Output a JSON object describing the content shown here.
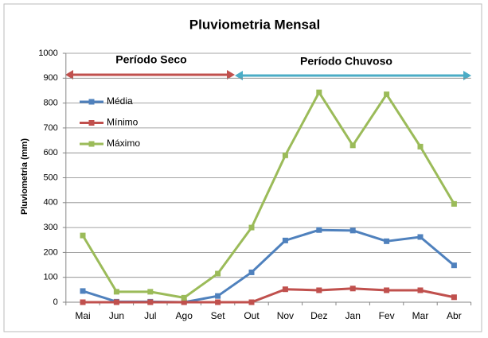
{
  "chart_data": {
    "type": "line",
    "title": "Pluviometria Mensal",
    "y_label": "Pluviometria (mm)",
    "annotations": [
      "Período Seco",
      "Período Chuvoso"
    ],
    "categories": [
      "Mai",
      "Jun",
      "Jul",
      "Ago",
      "Set",
      "Out",
      "Nov",
      "Dez",
      "Jan",
      "Fev",
      "Mar",
      "Abr"
    ],
    "series": [
      {
        "name": "Média",
        "color": "#4f81bd",
        "values": [
          45,
          2,
          2,
          0,
          25,
          120,
          248,
          290,
          288,
          245,
          262,
          148
        ]
      },
      {
        "name": "Mínimo",
        "color": "#c0504d",
        "values": [
          0,
          0,
          0,
          0,
          0,
          0,
          52,
          48,
          55,
          48,
          48,
          20
        ]
      },
      {
        "name": "Máximo",
        "color": "#9bbb59",
        "values": [
          268,
          42,
          42,
          18,
          115,
          300,
          590,
          843,
          630,
          835,
          625,
          395
        ]
      }
    ],
    "ylim": [
      0,
      1000
    ],
    "yticks": [
      0,
      100,
      200,
      300,
      400,
      500,
      600,
      700,
      800,
      900,
      1000
    ],
    "grid": true,
    "legend": "upper left"
  }
}
